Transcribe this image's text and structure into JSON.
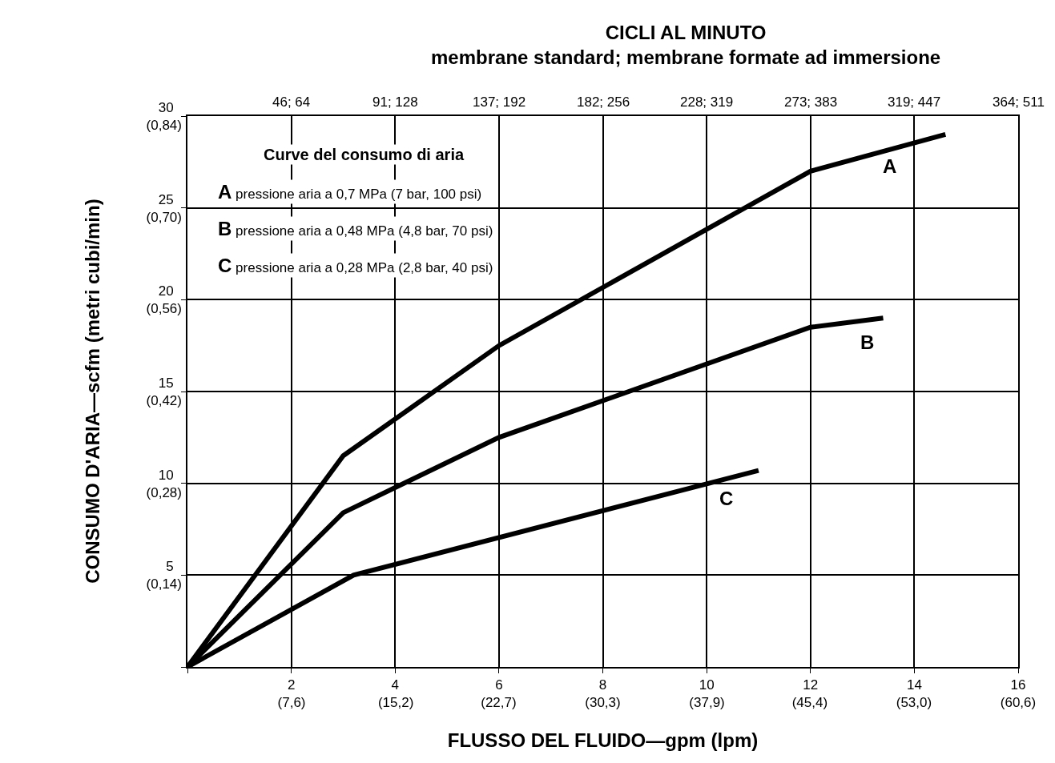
{
  "chart_data": {
    "type": "line",
    "title": "CICLI AL MINUTO",
    "subtitle": "membrane standard; membrane formate ad immersione",
    "xlabel": "FLUSSO DEL FLUIDO—gpm (lpm)",
    "y2label": "CONSUMO D'ARIA—scfm (metri cubi/min)",
    "series": [
      {
        "name": "A",
        "color": "#000000",
        "x": [
          0,
          3,
          6,
          12,
          14.6
        ],
        "values": [
          0,
          11.5,
          17.5,
          27,
          29
        ]
      },
      {
        "name": "B",
        "color": "#000000",
        "x": [
          0,
          3,
          6,
          12,
          13.4
        ],
        "values": [
          0,
          8.4,
          12.5,
          18.5,
          19
        ]
      },
      {
        "name": "C",
        "color": "#000000",
        "x": [
          0,
          3.2,
          11
        ],
        "values": [
          0,
          5,
          10.7
        ]
      }
    ],
    "xlim": [
      0,
      16
    ],
    "ylim": [
      0,
      30
    ],
    "xticks": [
      {
        "value": 0,
        "label": null
      },
      2,
      4,
      6,
      8,
      10,
      12,
      14,
      16
    ],
    "yticks": [
      {
        "value": 0,
        "label": null
      },
      5,
      10,
      15,
      20,
      25,
      30
    ],
    "y2lim": [
      0,
      0.84
    ],
    "y2ticks": [
      {
        "value": 0.14,
        "label": "(0,14)"
      },
      {
        "value": 0.28,
        "label": "(0,28)"
      },
      {
        "value": 0.42,
        "label": "(0,42)"
      },
      {
        "value": 0.56,
        "label": "(0,56)"
      },
      {
        "value": 0.7,
        "label": "(0,70)"
      },
      {
        "value": 0.84,
        "label": "(0,84)"
      }
    ],
    "x2lim": [
      0,
      60.6
    ],
    "x2ticks": [
      {
        "value": 7.6,
        "label": "(7,6)"
      },
      {
        "value": 15.2,
        "label": "(15,2)"
      },
      {
        "value": 22.7,
        "label": "(22,7)"
      },
      {
        "value": 30.3,
        "label": "(30,3)"
      },
      {
        "value": 37.9,
        "label": "(37,9)"
      },
      {
        "value": 45.4,
        "label": "(45,4)"
      },
      {
        "value": 53.0,
        "label": "(53,0)"
      },
      {
        "value": 60.6,
        "label": "(60,6)"
      }
    ],
    "annotations": [
      "46; 64",
      "91; 128",
      "137; 192",
      "182; 256",
      "228; 319",
      "273; 383",
      "319; 447",
      "364; 511",
      "Curve del consumo di aria",
      "A pressione aria a 0,7 MPa (7 bar, 100 psi)",
      "B pressione aria a 0,48 MPa (4,8 bar, 70 psi)",
      "C pressione aria a 0,28 MPa (2,8 bar, 40 psi)"
    ],
    "grid": true,
    "legend": false,
    "marker": "none",
    "line_style": "solid"
  }
}
